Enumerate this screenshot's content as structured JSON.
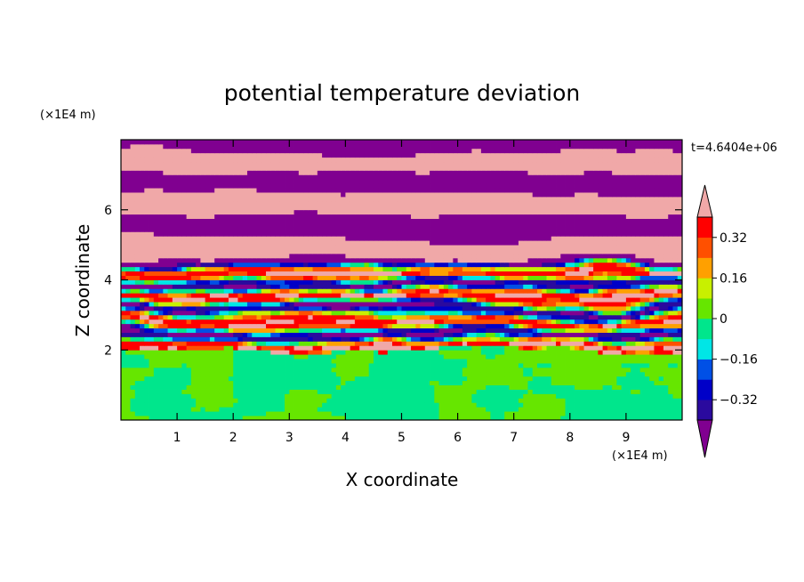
{
  "chart_data": {
    "type": "heatmap",
    "title": "potential temperature deviation",
    "xlabel": "X coordinate",
    "ylabel": "Z coordinate",
    "x_unit": "(×1E4 m)",
    "y_unit": "(×1E4 m)",
    "time_label": "t=4.6404e+06",
    "xlim": [
      0,
      10
    ],
    "ylim": [
      0,
      8
    ],
    "x_ticks": [
      "1",
      "2",
      "3",
      "4",
      "5",
      "6",
      "7",
      "8",
      "9"
    ],
    "y_ticks": [
      "2",
      "4",
      "6"
    ],
    "x_tick_values": [
      1,
      2,
      3,
      4,
      5,
      6,
      7,
      8,
      9
    ],
    "y_tick_values": [
      2,
      4,
      6
    ],
    "colorbar": {
      "levels": [
        -0.4,
        -0.32,
        -0.24,
        -0.16,
        -0.08,
        0,
        0.08,
        0.16,
        0.24,
        0.32,
        0.4
      ],
      "labels": [
        "0.32",
        "0.16",
        "0",
        "−0.16",
        "−0.32"
      ],
      "label_values": [
        0.32,
        0.16,
        0,
        -0.16,
        -0.32
      ],
      "colors": [
        "#800090",
        "#2a0a9e",
        "#0000c8",
        "#0050e6",
        "#00a0ff",
        "#00e6e6",
        "#00e68c",
        "#66e600",
        "#c8f000",
        "#ffff00",
        "#ffa000",
        "#ff5000",
        "#ff0000",
        "#f0a8a8"
      ],
      "over_color": "#f0a8a8",
      "under_color": "#800090",
      "extend": "both"
    },
    "field_description_bands": [
      {
        "z_from": 7.4,
        "z_to": 8.0,
        "value": -0.45
      },
      {
        "z_from": 6.9,
        "z_to": 7.4,
        "value": 0.45
      },
      {
        "z_from": 6.3,
        "z_to": 6.9,
        "value": -0.45
      },
      {
        "z_from": 5.7,
        "z_to": 6.3,
        "value": 0.45
      },
      {
        "z_from": 5.0,
        "z_to": 5.7,
        "value": -0.45
      },
      {
        "z_from": 4.6,
        "z_to": 5.0,
        "value": 0.45
      },
      {
        "z_from": 2.0,
        "z_to": 4.6,
        "value": 0.0
      },
      {
        "z_from": 0.0,
        "z_to": 2.0,
        "value": 0.05
      }
    ]
  },
  "colors": {
    "axis": "#000000",
    "background": "#ffffff"
  }
}
